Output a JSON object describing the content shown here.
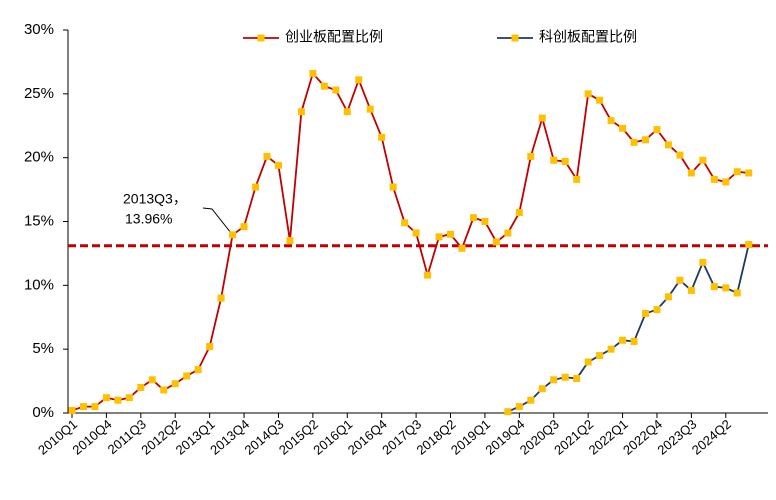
{
  "chart_data": {
    "type": "line",
    "categories": [
      "2010Q1",
      null,
      null,
      "2010Q4",
      null,
      null,
      "2011Q3",
      null,
      null,
      "2012Q2",
      null,
      null,
      "2013Q1",
      null,
      null,
      "2013Q4",
      null,
      null,
      "2014Q3",
      null,
      null,
      "2015Q2",
      null,
      null,
      "2016Q1",
      null,
      null,
      "2016Q4",
      null,
      null,
      "2017Q3",
      null,
      null,
      "2018Q2",
      null,
      null,
      "2019Q1",
      null,
      null,
      "2019Q4",
      null,
      null,
      "2020Q3",
      null,
      null,
      "2021Q2",
      null,
      null,
      "2022Q1",
      null,
      null,
      "2022Q4",
      null,
      null,
      "2023Q3",
      null,
      null,
      "2024Q2",
      null,
      null
    ],
    "series": [
      {
        "name": "创业板配置比例",
        "color": "#c00000",
        "marker_color": "#ffc000",
        "values": [
          0.2,
          0.5,
          0.5,
          1.2,
          1.0,
          1.2,
          2.0,
          2.6,
          1.8,
          2.3,
          2.9,
          3.4,
          5.2,
          9.0,
          13.96,
          14.6,
          17.7,
          20.1,
          19.4,
          13.5,
          23.6,
          26.6,
          25.6,
          25.3,
          23.6,
          26.1,
          23.8,
          21.6,
          17.7,
          14.9,
          14.1,
          10.8,
          13.8,
          14.0,
          12.9,
          15.3,
          15.0,
          13.4,
          14.1,
          15.7,
          20.1,
          23.1,
          19.8,
          19.7,
          18.3,
          25.0,
          24.5,
          22.9,
          22.3,
          21.2,
          21.4,
          22.2,
          21.0,
          20.2,
          18.8,
          19.8,
          18.3,
          18.1,
          18.9,
          18.8
        ]
      },
      {
        "name": "科创板配置比例",
        "color": "#1f3864",
        "marker_color": "#ffc000",
        "values": [
          null,
          null,
          null,
          null,
          null,
          null,
          null,
          null,
          null,
          null,
          null,
          null,
          null,
          null,
          null,
          null,
          null,
          null,
          null,
          null,
          null,
          null,
          null,
          null,
          null,
          null,
          null,
          null,
          null,
          null,
          null,
          null,
          null,
          null,
          null,
          null,
          null,
          null,
          0.1,
          0.5,
          1.0,
          1.9,
          2.6,
          2.8,
          2.7,
          4.0,
          4.5,
          5.0,
          5.7,
          5.6,
          7.8,
          8.1,
          9.1,
          10.4,
          9.6,
          11.8,
          9.9,
          9.8,
          9.4,
          13.2
        ]
      }
    ],
    "reference_line": {
      "value": 13.1,
      "color": "#c00000"
    },
    "annotation": [
      "2013Q3，",
      "13.96%"
    ],
    "ylim": [
      0,
      30
    ],
    "yticks": [
      {
        "value": 0,
        "label": "0%"
      },
      {
        "value": 5,
        "label": "5%"
      },
      {
        "value": 10,
        "label": "10%"
      },
      {
        "value": 15,
        "label": "15%"
      },
      {
        "value": 20,
        "label": "20%"
      },
      {
        "value": 25,
        "label": "25%"
      },
      {
        "value": 30,
        "label": "30%"
      }
    ],
    "grid": false
  }
}
